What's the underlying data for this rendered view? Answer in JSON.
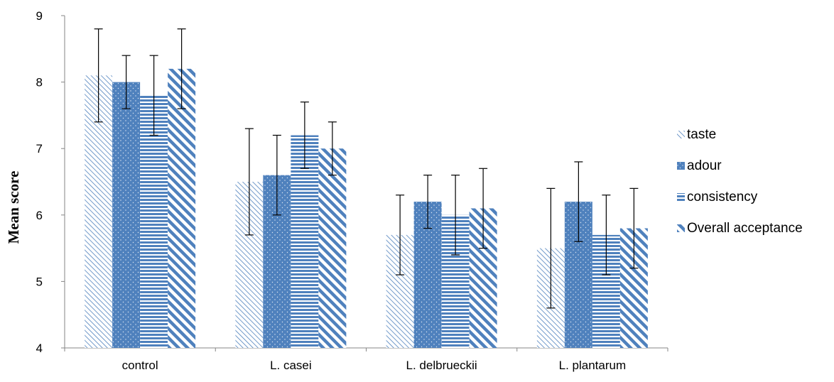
{
  "chart_data": {
    "type": "bar",
    "title": "",
    "xlabel": "",
    "ylabel": "Mean score",
    "ylim": [
      4,
      9
    ],
    "yticks": [
      4,
      5,
      6,
      7,
      8,
      9
    ],
    "grid": false,
    "legend_position": "right",
    "categories": [
      "control",
      "L. casei",
      "L. delbrueckii",
      "L. plantarum"
    ],
    "series": [
      {
        "name": "taste",
        "pattern": "diagonal-thin",
        "color": "#4f81bd",
        "values": [
          8.1,
          6.5,
          5.7,
          5.5
        ],
        "error": [
          0.7,
          0.8,
          0.6,
          0.9
        ]
      },
      {
        "name": "adour",
        "pattern": "dotted-solid",
        "color": "#4f81bd",
        "values": [
          8.0,
          6.6,
          6.2,
          6.2
        ],
        "error": [
          0.4,
          0.6,
          0.4,
          0.6
        ]
      },
      {
        "name": "consistency",
        "pattern": "horizontal-stripes",
        "color": "#4f81bd",
        "values": [
          7.8,
          7.2,
          6.0,
          5.7
        ],
        "error": [
          0.6,
          0.5,
          0.6,
          0.6
        ]
      },
      {
        "name": "Overall acceptance",
        "pattern": "diagonal-wide",
        "color": "#4f81bd",
        "values": [
          8.2,
          7.0,
          6.1,
          5.8
        ],
        "error": [
          0.6,
          0.4,
          0.6,
          0.6
        ]
      }
    ]
  }
}
